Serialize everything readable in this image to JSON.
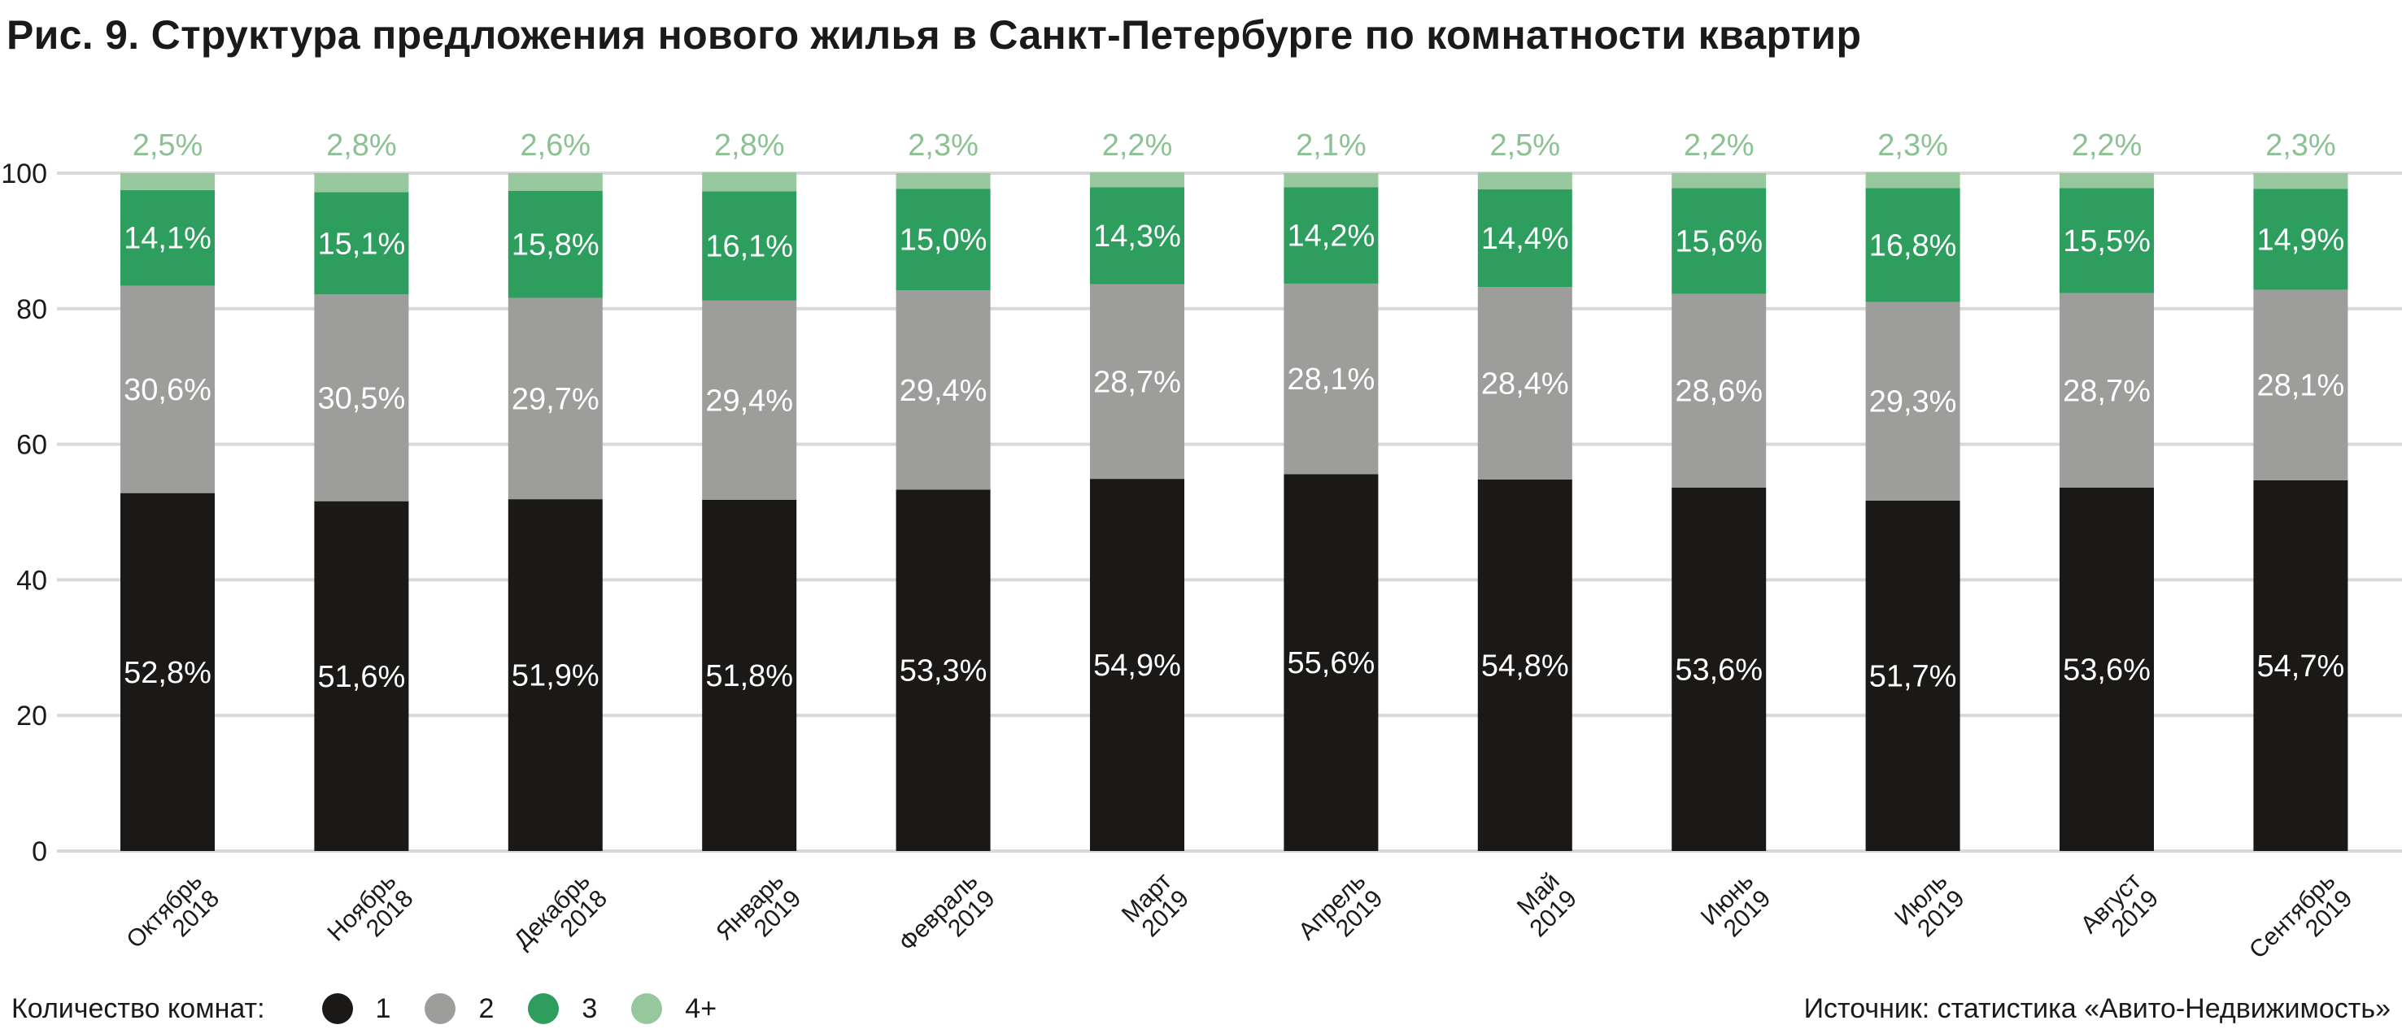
{
  "chart_data": {
    "type": "bar",
    "stacked": true,
    "title": "Рис. 9. Структура предложения нового жилья в Санкт-Петербурге по комнатности квартир",
    "categories": [
      [
        "Октябрь",
        "2018"
      ],
      [
        "Ноябрь",
        "2018"
      ],
      [
        "Декабрь",
        "2018"
      ],
      [
        "Январь",
        "2019"
      ],
      [
        "Февраль",
        "2019"
      ],
      [
        "Март",
        "2019"
      ],
      [
        "Апрель",
        "2019"
      ],
      [
        "Май",
        "2019"
      ],
      [
        "Июнь",
        "2019"
      ],
      [
        "Июль",
        "2019"
      ],
      [
        "Август",
        "2019"
      ],
      [
        "Сентябрь",
        "2019"
      ]
    ],
    "ylim": [
      0,
      100
    ],
    "yticks": [
      0,
      20,
      40,
      60,
      80,
      100
    ],
    "grid": true,
    "series": [
      {
        "name": "1",
        "color": "#1a1917",
        "label_color": "#ffffff",
        "values": [
          52.8,
          51.6,
          51.9,
          51.8,
          53.3,
          54.9,
          55.6,
          54.8,
          53.6,
          51.7,
          53.6,
          54.7
        ],
        "labels": [
          "52,8%",
          "51,6%",
          "51,9%",
          "51,8%",
          "53,3%",
          "54,9%",
          "55,6%",
          "54,8%",
          "53,6%",
          "51,7%",
          "53,6%",
          "54,7%"
        ]
      },
      {
        "name": "2",
        "color": "#9d9d9c",
        "label_color": "#ffffff",
        "values": [
          30.6,
          30.5,
          29.7,
          29.4,
          29.4,
          28.7,
          28.1,
          28.4,
          28.6,
          29.3,
          28.7,
          28.1
        ],
        "labels": [
          "30,6%",
          "30,5%",
          "29,7%",
          "29,4%",
          "29,4%",
          "28,7%",
          "28,1%",
          "28,4%",
          "28,6%",
          "29,3%",
          "28,7%",
          "28,1%"
        ]
      },
      {
        "name": "3",
        "color": "#2e9e5e",
        "label_color": "#ffffff",
        "values": [
          14.1,
          15.1,
          15.8,
          16.1,
          15.0,
          14.3,
          14.2,
          14.4,
          15.6,
          16.8,
          15.5,
          14.9
        ],
        "labels": [
          "14,1%",
          "15,1%",
          "15,8%",
          "16,1%",
          "15,0%",
          "14,3%",
          "14,2%",
          "14,4%",
          "15,6%",
          "16,8%",
          "15,5%",
          "14,9%"
        ]
      },
      {
        "name": "4+",
        "color": "#97c89d",
        "label_color": "#8cc293",
        "values": [
          2.5,
          2.8,
          2.6,
          2.8,
          2.3,
          2.2,
          2.1,
          2.5,
          2.2,
          2.3,
          2.2,
          2.3
        ],
        "labels": [
          "2,5%",
          "2,8%",
          "2,6%",
          "2,8%",
          "2,3%",
          "2,2%",
          "2,1%",
          "2,5%",
          "2,2%",
          "2,3%",
          "2,2%",
          "2,3%"
        ]
      }
    ]
  },
  "legend": {
    "title": "Количество комнат:",
    "items": [
      {
        "label": "1",
        "color": "#1a1917"
      },
      {
        "label": "2",
        "color": "#9d9d9c"
      },
      {
        "label": "3",
        "color": "#2e9e5e"
      },
      {
        "label": "4+",
        "color": "#97c89d"
      }
    ]
  },
  "source": "Источник: статистика «Авито-Недвижимость»"
}
